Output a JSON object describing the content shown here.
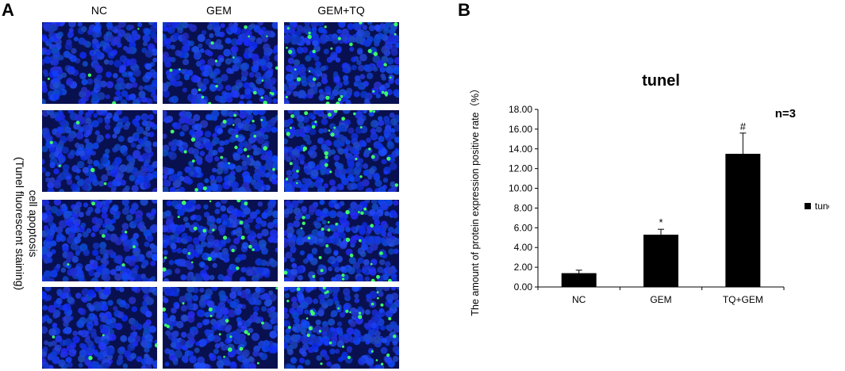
{
  "panel_a": {
    "letter": "A",
    "column_labels": [
      "NC",
      "GEM",
      "GEM+TQ"
    ],
    "row_label_line1": "cell apoptosis",
    "row_label_line2": "(Tunel fluorescent staining)",
    "rows": 4,
    "apoptotic_density": [
      0.2,
      1.2,
      2.0
    ],
    "colors": {
      "nuclei": "#1a3cf0",
      "background": "#081050",
      "apoptotic": "#3cff6a"
    }
  },
  "panel_b": {
    "letter": "B"
  },
  "chart_data": {
    "type": "bar",
    "title": "tunel",
    "annotation": "n=3",
    "ylabel": "The amount of protein expression positive rate（%）",
    "xlabel": "",
    "categories": [
      "NC",
      "GEM",
      "TQ+GEM"
    ],
    "series": [
      {
        "name": "tunel",
        "values": [
          1.4,
          5.3,
          13.5
        ],
        "errors": [
          0.3,
          0.55,
          2.1
        ],
        "markers": [
          "",
          "*",
          "#"
        ]
      }
    ],
    "ylim": [
      0,
      18
    ],
    "yticks": [
      "0.00",
      "2.00",
      "4.00",
      "6.00",
      "8.00",
      "10.00",
      "12.00",
      "14.00",
      "16.00",
      "18.00"
    ],
    "bar_color": "#000000",
    "legend_position": "right",
    "grid": false
  }
}
